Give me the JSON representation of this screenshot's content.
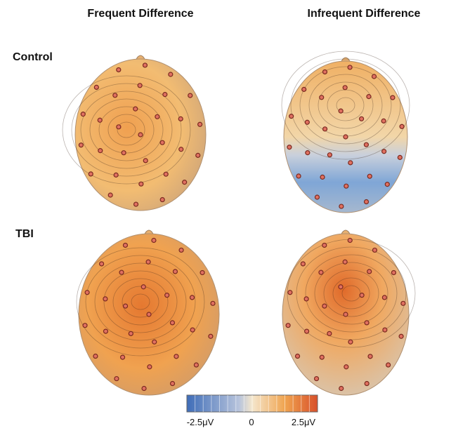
{
  "column_headers": [
    "Frequent Difference",
    "Infrequent Difference"
  ],
  "row_labels": [
    "Control",
    "TBI"
  ],
  "colorbar": {
    "labels": [
      "-2.5μV",
      "0",
      "2.5μV"
    ]
  }
}
